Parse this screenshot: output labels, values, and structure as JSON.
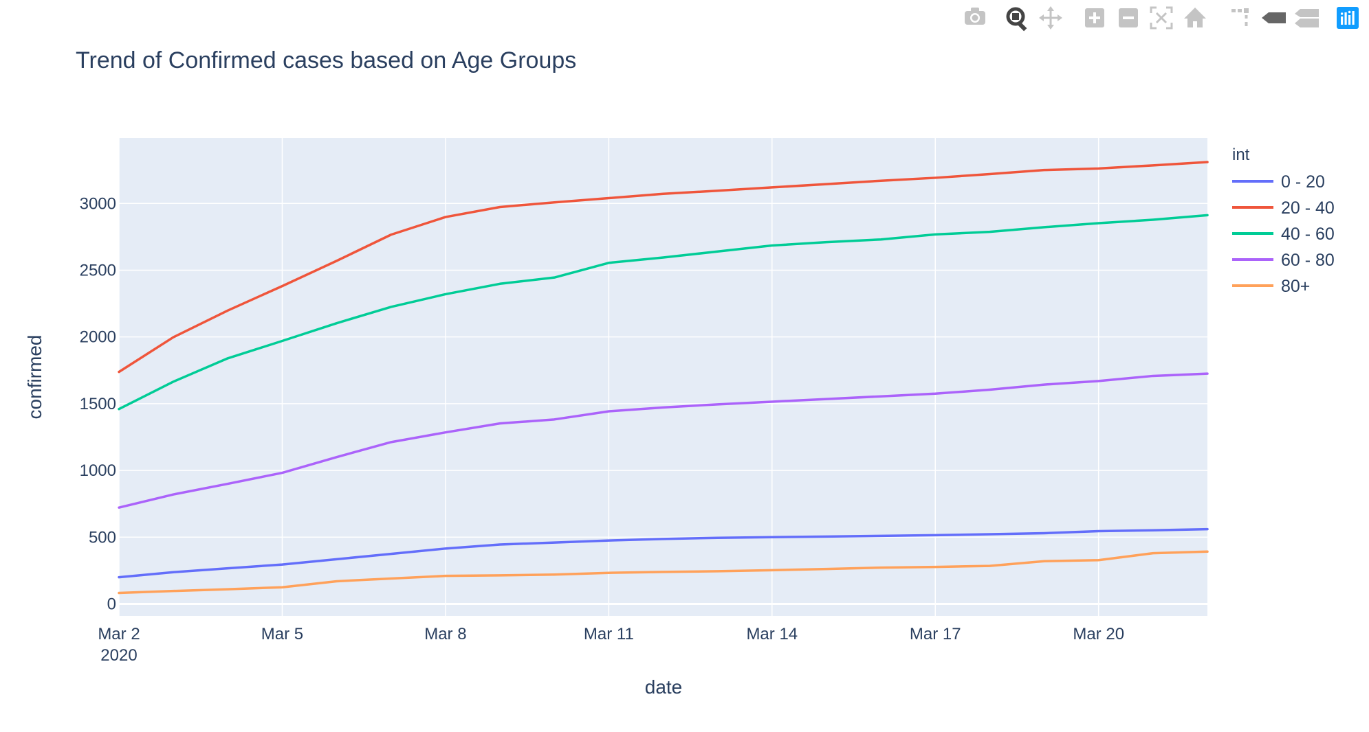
{
  "modebar": {
    "buttons": [
      "camera-icon",
      "zoom-icon",
      "pan-icon",
      "zoom-in-icon",
      "zoom-out-icon",
      "autoscale-icon",
      "reset-axes-icon",
      "spike-lines-icon",
      "hover-closest-icon",
      "hover-compare-icon",
      "plotly-logo-icon"
    ]
  },
  "chart_data": {
    "type": "line",
    "title": "Trend of Confirmed cases based on Age Groups",
    "xlabel": "date",
    "ylabel": "confirmed",
    "x_tick_labels": [
      "Mar 2",
      "Mar 5",
      "Mar 8",
      "Mar 11",
      "Mar 14",
      "Mar 17",
      "Mar 20"
    ],
    "x_tick_year": "2020",
    "x_tick_dates": [
      "2020-03-02",
      "2020-03-05",
      "2020-03-08",
      "2020-03-11",
      "2020-03-14",
      "2020-03-17",
      "2020-03-20"
    ],
    "y_ticks": [
      0,
      500,
      1000,
      1500,
      2000,
      2500,
      3000
    ],
    "y_tick_labels": [
      "0",
      "500",
      "1000",
      "1500",
      "2000",
      "2500",
      "3000"
    ],
    "xlim": [
      "2020-03-02",
      "2020-03-22"
    ],
    "ylim": [
      -90,
      3490
    ],
    "grid": true,
    "legend_title": "int",
    "legend_position": "right",
    "plot_background": "#e5ecf6",
    "x": [
      "2020-03-02",
      "2020-03-03",
      "2020-03-04",
      "2020-03-05",
      "2020-03-06",
      "2020-03-07",
      "2020-03-08",
      "2020-03-09",
      "2020-03-10",
      "2020-03-11",
      "2020-03-12",
      "2020-03-13",
      "2020-03-14",
      "2020-03-15",
      "2020-03-16",
      "2020-03-17",
      "2020-03-18",
      "2020-03-19",
      "2020-03-20",
      "2020-03-21",
      "2020-03-22"
    ],
    "series": [
      {
        "name": "0 - 20",
        "color": "#636efa",
        "values": [
          200,
          238,
          267,
          295,
          335,
          375,
          415,
          445,
          460,
          475,
          487,
          495,
          500,
          505,
          510,
          515,
          522,
          530,
          545,
          552,
          560
        ]
      },
      {
        "name": "20 - 40",
        "color": "#ef553b",
        "values": [
          1738,
          1998,
          2198,
          2381,
          2570,
          2766,
          2898,
          2973,
          3008,
          3040,
          3072,
          3095,
          3120,
          3145,
          3170,
          3192,
          3220,
          3250,
          3262,
          3285,
          3310
        ]
      },
      {
        "name": "40 - 60",
        "color": "#00cc96",
        "values": [
          1460,
          1665,
          1840,
          1970,
          2103,
          2225,
          2320,
          2398,
          2445,
          2555,
          2595,
          2640,
          2685,
          2710,
          2730,
          2768,
          2787,
          2822,
          2852,
          2878,
          2912
        ]
      },
      {
        "name": "60 - 80",
        "color": "#ab63fa",
        "values": [
          722,
          820,
          900,
          982,
          1100,
          1212,
          1285,
          1352,
          1382,
          1443,
          1472,
          1495,
          1515,
          1535,
          1555,
          1575,
          1605,
          1643,
          1670,
          1708,
          1725
        ]
      },
      {
        "name": "80+",
        "color": "#ffa15a",
        "values": [
          82,
          97,
          110,
          125,
          170,
          190,
          210,
          214,
          220,
          233,
          240,
          245,
          253,
          262,
          272,
          277,
          285,
          320,
          328,
          380,
          392
        ]
      }
    ]
  }
}
